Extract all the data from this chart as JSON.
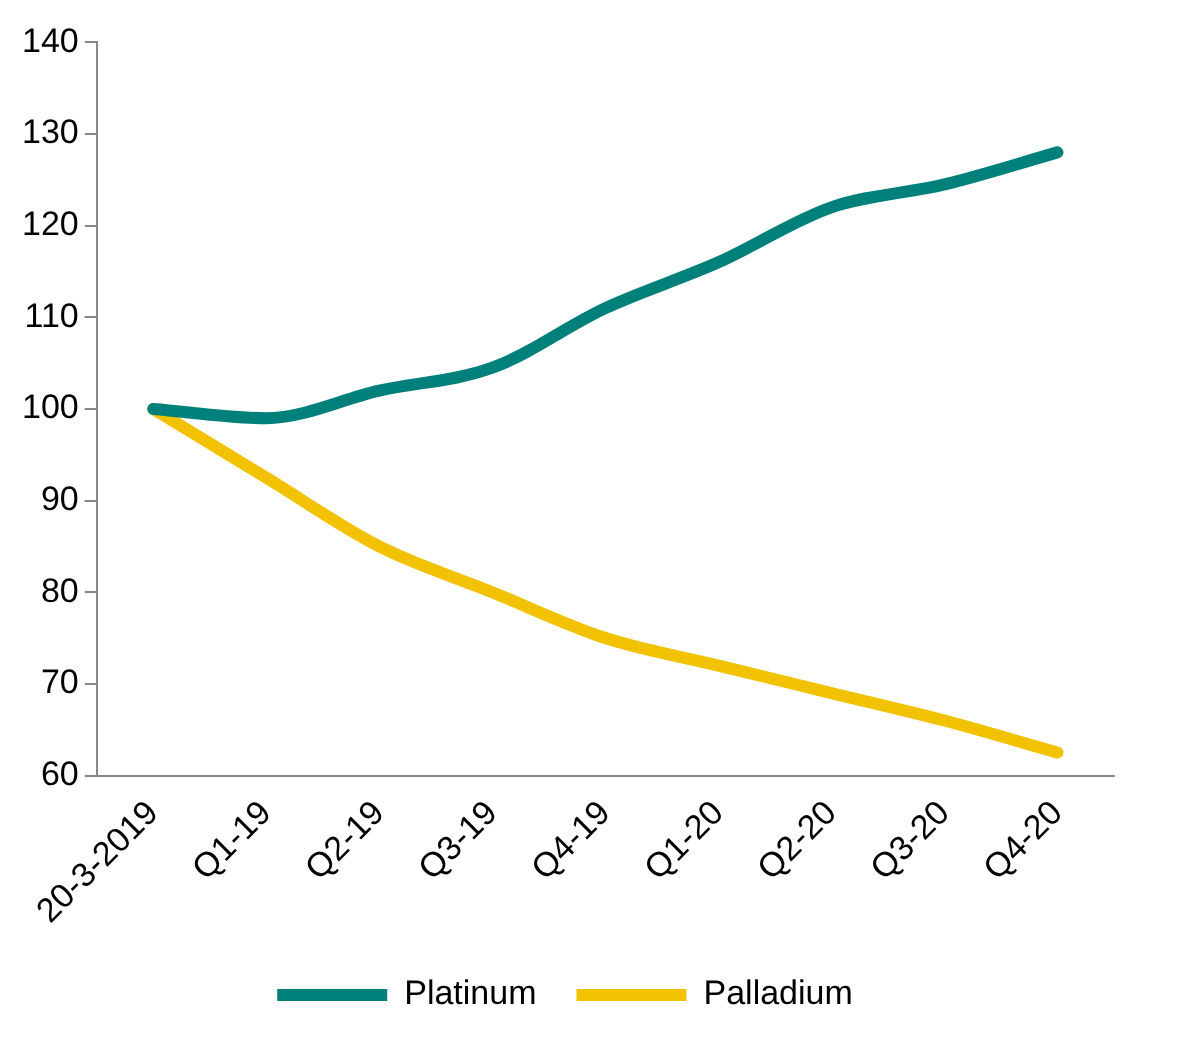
{
  "chart_data": {
    "type": "line",
    "categories": [
      "20-3-2019",
      "Q1-19",
      "Q2-19",
      "Q3-19",
      "Q4-19",
      "Q1-20",
      "Q2-20",
      "Q3-20",
      "Q4-20"
    ],
    "series": [
      {
        "name": "Platinum",
        "color": "#00807a",
        "values": [
          100,
          99,
          102,
          104.5,
          111,
          116,
          122,
          124.5,
          128
        ]
      },
      {
        "name": "Palladium",
        "color": "#f2c200",
        "values": [
          100,
          92.5,
          85,
          80,
          75,
          72,
          69,
          66,
          62.5
        ]
      }
    ],
    "ylim": [
      60,
      140
    ],
    "yticks": [
      60,
      70,
      80,
      90,
      100,
      110,
      120,
      130,
      140
    ],
    "grid": false,
    "legend": "bottom",
    "marker": "none",
    "line_style": "solid"
  }
}
